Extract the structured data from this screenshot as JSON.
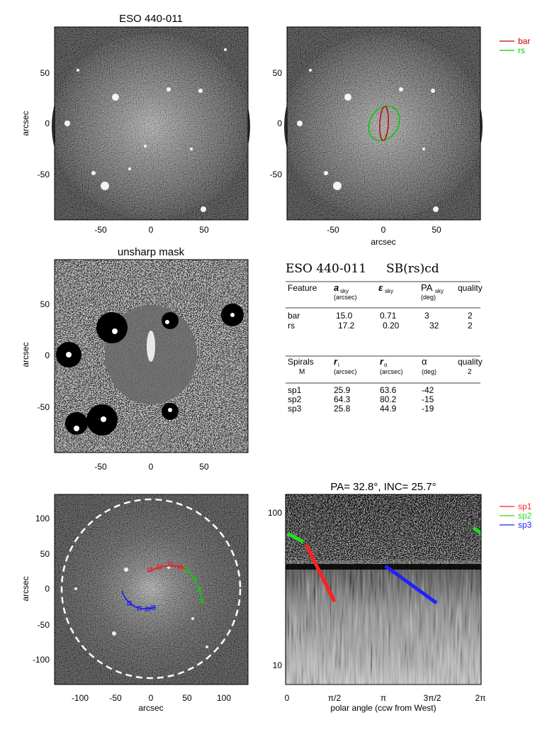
{
  "panel1": {
    "title": "ESO 440-011",
    "ylabel": "arcsec",
    "xticks": [
      "-50",
      "0",
      "50"
    ],
    "yticks": [
      "50",
      "0",
      "-50"
    ]
  },
  "panel2": {
    "xlabel": "arcsec",
    "xticks": [
      "-50",
      "0",
      "50"
    ],
    "yticks": [
      "50",
      "0",
      "-50"
    ],
    "legend": [
      {
        "label": "bar",
        "color": "#cc0000"
      },
      {
        "label": "rs",
        "color": "#00cc00"
      }
    ]
  },
  "panel3": {
    "title": "unsharp mask",
    "ylabel": "arcsec",
    "xticks": [
      "-50",
      "0",
      "50"
    ],
    "yticks": [
      "50",
      "0",
      "-50"
    ]
  },
  "info": {
    "galaxy": "ESO 440-011",
    "type": "SB(rs)cd",
    "feature_header": {
      "feature": "Feature",
      "a": "a",
      "a_sub": "sky",
      "a_unit": "(arcsec)",
      "eps": "ε",
      "eps_sub": "sky",
      "pa": "PA",
      "pa_sub": "sky",
      "pa_unit": "(deg)",
      "quality": "quality"
    },
    "features": [
      {
        "name": "bar",
        "a": "15.0",
        "eps": "0.71",
        "pa": "3",
        "q": "2"
      },
      {
        "name": "rs",
        "a": "17.2",
        "eps": "0.20",
        "pa": "32",
        "q": "2"
      }
    ],
    "spiral_header": {
      "spirals": "Spirals",
      "m": "M",
      "ri": "r",
      "ri_sub": "i",
      "ri_unit": "(arcsec)",
      "ro": "r",
      "ro_sub": "o",
      "ro_unit": "(arcsec)",
      "alpha": "α",
      "alpha_unit": "(deg)",
      "quality": "quality",
      "q_val": "2"
    },
    "spirals": [
      {
        "name": "sp1",
        "ri": "25.9",
        "ro": "63.6",
        "alpha": "-42"
      },
      {
        "name": "sp2",
        "ri": "64.3",
        "ro": "80.2",
        "alpha": "-15"
      },
      {
        "name": "sp3",
        "ri": "25.8",
        "ro": "44.9",
        "alpha": "-19"
      }
    ]
  },
  "panel5": {
    "xlabel": "arcsec",
    "ylabel": "arcsec",
    "xticks": [
      "-100",
      "-50",
      "0",
      "50",
      "100"
    ],
    "yticks": [
      "100",
      "50",
      "0",
      "-50",
      "-100"
    ]
  },
  "panel6": {
    "title": "PA= 32.8°, INC= 25.7°",
    "xlabel": "polar angle (ccw from West)",
    "xticks": [
      "0",
      "π/2",
      "π",
      "3π/2",
      "2π"
    ],
    "yticks": [
      "100",
      "10"
    ],
    "legend": [
      {
        "label": "sp1",
        "color": "#ff2020"
      },
      {
        "label": "sp2",
        "color": "#20dd20"
      },
      {
        "label": "sp3",
        "color": "#2020ff"
      }
    ]
  }
}
